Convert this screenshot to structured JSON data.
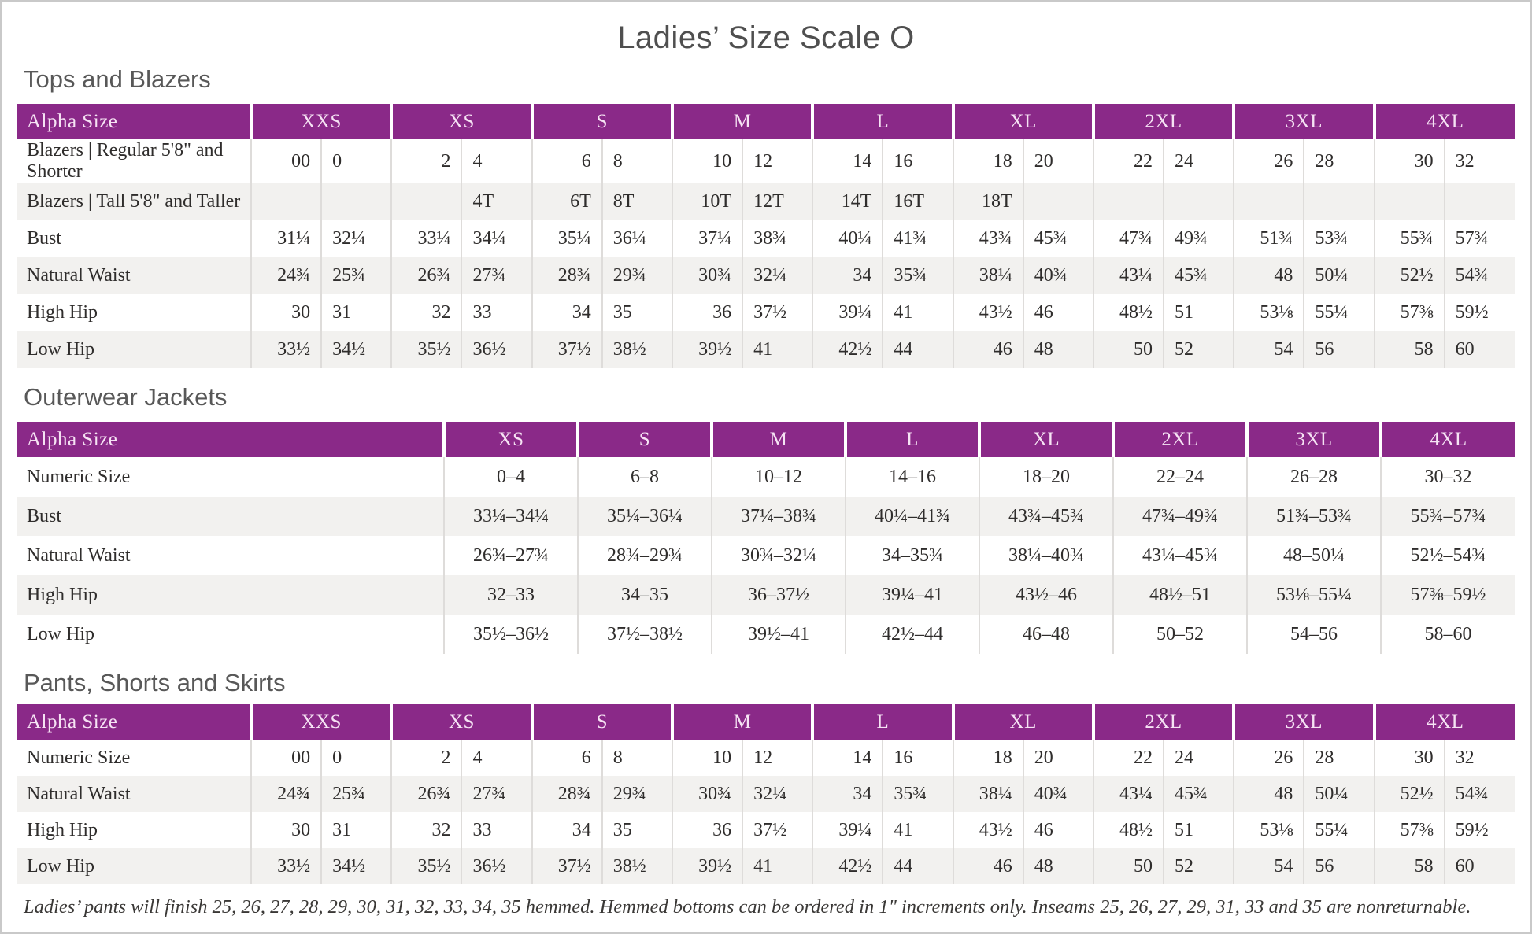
{
  "page": {
    "title": "Ladies’ Size Scale O"
  },
  "colors": {
    "header_bg": "#8A2988",
    "header_text": "#F6E3F4",
    "row_stripe": "#F2F1EF",
    "divider": "#DEDCDA",
    "body_text": "#2F2D2C",
    "heading_text": "#585858"
  },
  "tables": [
    {
      "title": "Tops and Blazers",
      "type": "paired",
      "corner_label": "Alpha Size",
      "sizes": [
        "XXS",
        "XS",
        "S",
        "M",
        "L",
        "XL",
        "2XL",
        "3XL",
        "4XL"
      ],
      "rows": [
        {
          "label": "Blazers | Regular 5'8\" and Shorter",
          "values": [
            [
              "00",
              "0"
            ],
            [
              "2",
              "4"
            ],
            [
              "6",
              "8"
            ],
            [
              "10",
              "12"
            ],
            [
              "14",
              "16"
            ],
            [
              "18",
              "20"
            ],
            [
              "22",
              "24"
            ],
            [
              "26",
              "28"
            ],
            [
              "30",
              "32"
            ]
          ]
        },
        {
          "label": "Blazers | Tall 5'8\" and Taller",
          "values": [
            [
              "",
              ""
            ],
            [
              "",
              "4T"
            ],
            [
              "6T",
              "8T"
            ],
            [
              "10T",
              "12T"
            ],
            [
              "14T",
              "16T"
            ],
            [
              "18T",
              ""
            ],
            [
              "",
              ""
            ],
            [
              "",
              ""
            ],
            [
              "",
              ""
            ]
          ]
        },
        {
          "label": "Bust",
          "values": [
            [
              "31¼",
              "32¼"
            ],
            [
              "33¼",
              "34¼"
            ],
            [
              "35¼",
              "36¼"
            ],
            [
              "37¼",
              "38¾"
            ],
            [
              "40¼",
              "41¾"
            ],
            [
              "43¾",
              "45¾"
            ],
            [
              "47¾",
              "49¾"
            ],
            [
              "51¾",
              "53¾"
            ],
            [
              "55¾",
              "57¾"
            ]
          ]
        },
        {
          "label": "Natural Waist",
          "values": [
            [
              "24¾",
              "25¾"
            ],
            [
              "26¾",
              "27¾"
            ],
            [
              "28¾",
              "29¾"
            ],
            [
              "30¾",
              "32¼"
            ],
            [
              "34",
              "35¾"
            ],
            [
              "38¼",
              "40¾"
            ],
            [
              "43¼",
              "45¾"
            ],
            [
              "48",
              "50¼"
            ],
            [
              "52½",
              "54¾"
            ]
          ]
        },
        {
          "label": "High Hip",
          "values": [
            [
              "30",
              "31"
            ],
            [
              "32",
              "33"
            ],
            [
              "34",
              "35"
            ],
            [
              "36",
              "37½"
            ],
            [
              "39¼",
              "41"
            ],
            [
              "43½",
              "46"
            ],
            [
              "48½",
              "51"
            ],
            [
              "53⅛",
              "55¼"
            ],
            [
              "57⅜",
              "59½"
            ]
          ]
        },
        {
          "label": "Low Hip",
          "values": [
            [
              "33½",
              "34½"
            ],
            [
              "35½",
              "36½"
            ],
            [
              "37½",
              "38½"
            ],
            [
              "39½",
              "41"
            ],
            [
              "42½",
              "44"
            ],
            [
              "46",
              "48"
            ],
            [
              "50",
              "52"
            ],
            [
              "54",
              "56"
            ],
            [
              "58",
              "60"
            ]
          ]
        }
      ]
    },
    {
      "title": "Outerwear Jackets",
      "type": "single",
      "corner_label": "Alpha Size",
      "sizes": [
        "XS",
        "S",
        "M",
        "L",
        "XL",
        "2XL",
        "3XL",
        "4XL"
      ],
      "rows": [
        {
          "label": "Numeric Size",
          "values": [
            "0–4",
            "6–8",
            "10–12",
            "14–16",
            "18–20",
            "22–24",
            "26–28",
            "30–32"
          ]
        },
        {
          "label": "Bust",
          "values": [
            "33¼–34¼",
            "35¼–36¼",
            "37¼–38¾",
            "40¼–41¾",
            "43¾–45¾",
            "47¾–49¾",
            "51¾–53¾",
            "55¾–57¾"
          ]
        },
        {
          "label": "Natural Waist",
          "values": [
            "26¾–27¾",
            "28¾–29¾",
            "30¾–32¼",
            "34–35¾",
            "38¼–40¾",
            "43¼–45¾",
            "48–50¼",
            "52½–54¾"
          ]
        },
        {
          "label": "High Hip",
          "values": [
            "32–33",
            "34–35",
            "36–37½",
            "39¼–41",
            "43½–46",
            "48½–51",
            "53⅛–55¼",
            "57⅜–59½"
          ]
        },
        {
          "label": "Low Hip",
          "values": [
            "35½–36½",
            "37½–38½",
            "39½–41",
            "42½–44",
            "46–48",
            "50–52",
            "54–56",
            "58–60"
          ]
        }
      ]
    },
    {
      "title": "Pants, Shorts and Skirts",
      "type": "paired",
      "corner_label": "Alpha Size",
      "sizes": [
        "XXS",
        "XS",
        "S",
        "M",
        "L",
        "XL",
        "2XL",
        "3XL",
        "4XL"
      ],
      "rows": [
        {
          "label": "Numeric Size",
          "values": [
            [
              "00",
              "0"
            ],
            [
              "2",
              "4"
            ],
            [
              "6",
              "8"
            ],
            [
              "10",
              "12"
            ],
            [
              "14",
              "16"
            ],
            [
              "18",
              "20"
            ],
            [
              "22",
              "24"
            ],
            [
              "26",
              "28"
            ],
            [
              "30",
              "32"
            ]
          ]
        },
        {
          "label": "Natural Waist",
          "values": [
            [
              "24¾",
              "25¾"
            ],
            [
              "26¾",
              "27¾"
            ],
            [
              "28¾",
              "29¾"
            ],
            [
              "30¾",
              "32¼"
            ],
            [
              "34",
              "35¾"
            ],
            [
              "38¼",
              "40¾"
            ],
            [
              "43¼",
              "45¾"
            ],
            [
              "48",
              "50¼"
            ],
            [
              "52½",
              "54¾"
            ]
          ]
        },
        {
          "label": "High Hip",
          "values": [
            [
              "30",
              "31"
            ],
            [
              "32",
              "33"
            ],
            [
              "34",
              "35"
            ],
            [
              "36",
              "37½"
            ],
            [
              "39¼",
              "41"
            ],
            [
              "43½",
              "46"
            ],
            [
              "48½",
              "51"
            ],
            [
              "53⅛",
              "55¼"
            ],
            [
              "57⅜",
              "59½"
            ]
          ]
        },
        {
          "label": "Low Hip",
          "values": [
            [
              "33½",
              "34½"
            ],
            [
              "35½",
              "36½"
            ],
            [
              "37½",
              "38½"
            ],
            [
              "39½",
              "41"
            ],
            [
              "42½",
              "44"
            ],
            [
              "46",
              "48"
            ],
            [
              "50",
              "52"
            ],
            [
              "54",
              "56"
            ],
            [
              "58",
              "60"
            ]
          ]
        }
      ]
    }
  ],
  "footnote": "Ladies’ pants will finish 25, 26, 27, 28, 29, 30, 31, 32, 33, 34, 35 hemmed. Hemmed bottoms can be ordered in 1\" increments only. Inseams 25, 26, 27, 29, 31, 33 and 35 are nonreturnable."
}
